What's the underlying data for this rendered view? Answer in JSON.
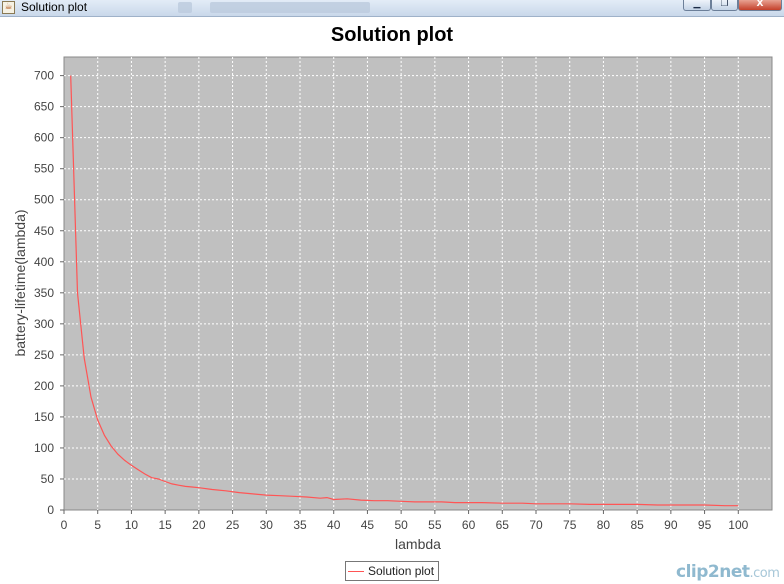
{
  "window": {
    "title": "Solution plot",
    "icon": "java-cup-icon",
    "controls": {
      "minimize": "▁",
      "maximize": "❐",
      "close": "X"
    }
  },
  "chart_data": {
    "type": "line",
    "title": "Solution plot",
    "xlabel": "lambda",
    "ylabel": "battery-lifetime(lambda)",
    "xlim": [
      0,
      105
    ],
    "ylim": [
      0,
      730
    ],
    "xticks": [
      0,
      5,
      10,
      15,
      20,
      25,
      30,
      35,
      40,
      45,
      50,
      55,
      60,
      65,
      70,
      75,
      80,
      85,
      90,
      95,
      100
    ],
    "yticks": [
      0,
      50,
      100,
      150,
      200,
      250,
      300,
      350,
      400,
      450,
      500,
      550,
      600,
      650,
      700
    ],
    "grid": true,
    "legend_position": "bottom-center",
    "series": [
      {
        "name": "Solution plot",
        "color": "#ff5555",
        "x": [
          1,
          2,
          3,
          4,
          5,
          6,
          7,
          8,
          9,
          10,
          11,
          12,
          13,
          14,
          15,
          16,
          17,
          18,
          19,
          20,
          22,
          24,
          26,
          28,
          30,
          32,
          34,
          36,
          38,
          39,
          40,
          42,
          44,
          46,
          48,
          50,
          52,
          54,
          56,
          58,
          60,
          62,
          65,
          68,
          70,
          72,
          75,
          78,
          80,
          82,
          85,
          88,
          90,
          92,
          95,
          98,
          100
        ],
        "y": [
          700,
          350,
          245,
          182,
          145,
          120,
          103,
          90,
          80,
          72,
          65,
          58,
          52,
          50,
          46,
          42,
          40,
          38,
          37,
          36,
          33,
          31,
          28,
          26,
          24,
          23,
          22,
          21,
          19,
          20,
          17,
          18,
          16,
          15,
          15,
          14,
          13,
          13,
          13,
          12,
          12,
          12,
          11,
          11,
          10,
          10,
          10,
          9,
          9,
          9,
          9,
          8,
          8,
          8,
          8,
          7,
          7
        ]
      }
    ]
  },
  "legend": {
    "label": "Solution plot"
  },
  "watermark": {
    "brand": "clip2net",
    "suffix": ".com"
  }
}
